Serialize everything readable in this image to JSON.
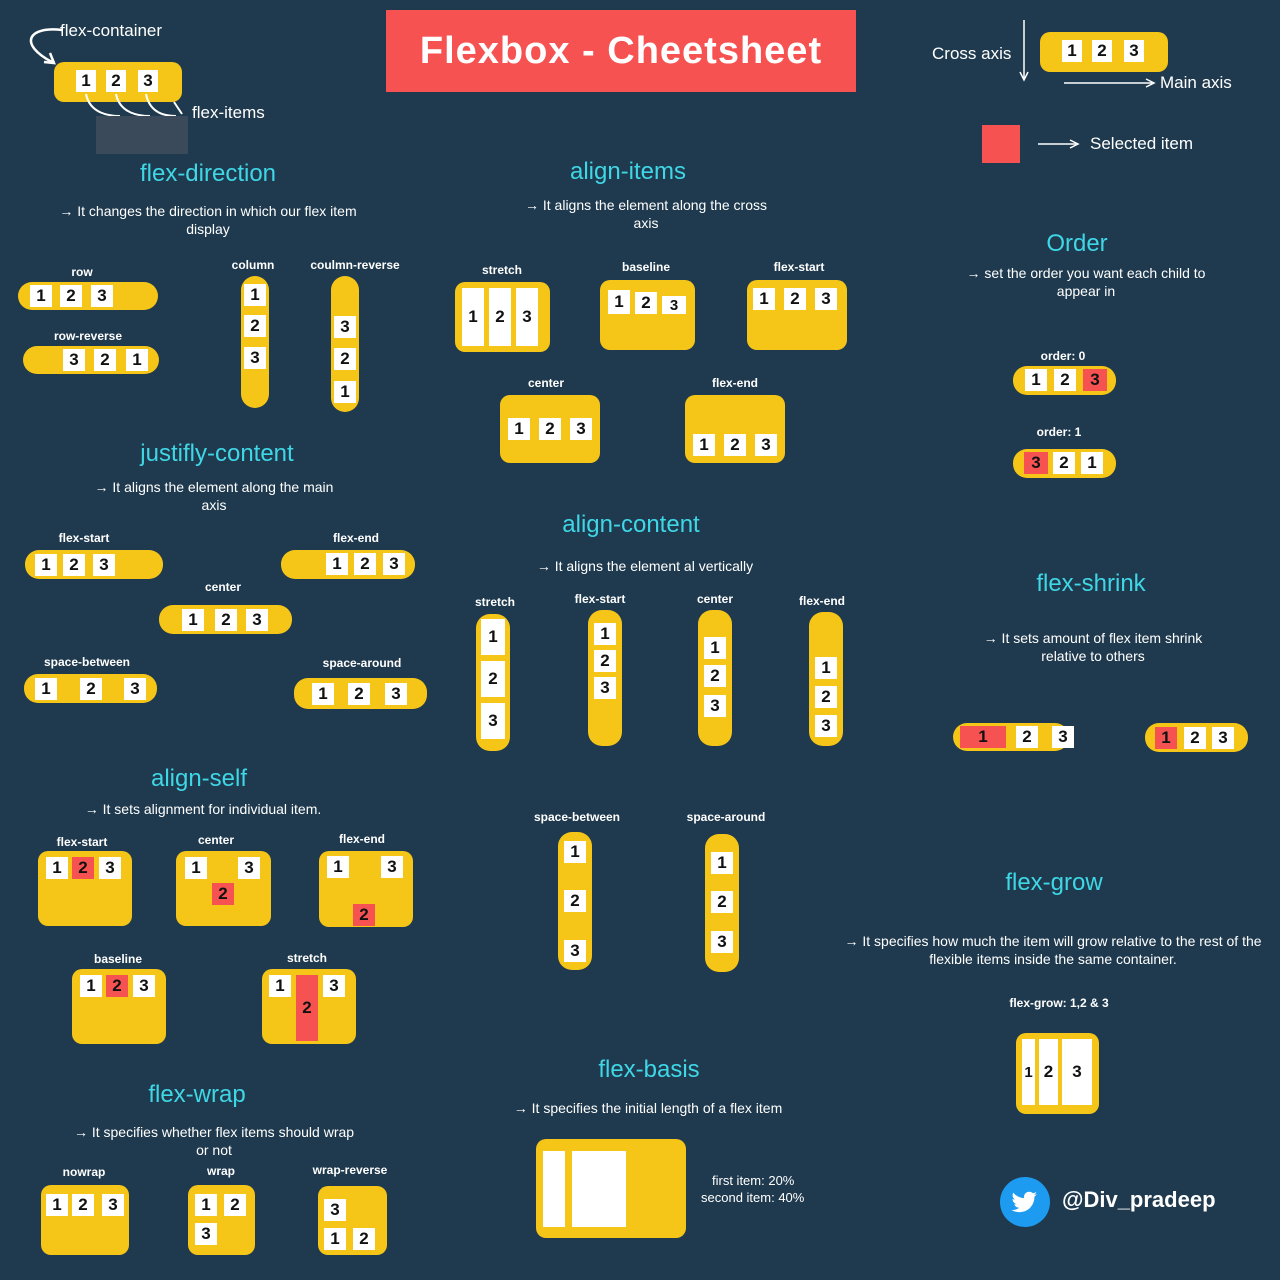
{
  "title": "Flexbox - Cheetsheet",
  "legend": {
    "flex_container": "flex-container",
    "flex_items": "flex-items",
    "cross_axis": "Cross axis",
    "main_axis": "Main axis",
    "selected_item": "Selected item"
  },
  "flex_direction": {
    "heading": "flex-direction",
    "desc": "→ It changes the direction in which our flex item display",
    "row": "row",
    "row_reverse": "row-reverse",
    "column": "column",
    "column_reverse": "coulmn-reverse"
  },
  "align_items": {
    "heading": "align-items",
    "desc": "→ It aligns the element along the cross  axis",
    "stretch": "stretch",
    "baseline": "baseline",
    "flex_start": "flex-start",
    "center": "center",
    "flex_end": "flex-end"
  },
  "order": {
    "heading": "Order",
    "desc": "→ set the order you want each child to appear in",
    "order0": "order: 0",
    "order1": "order: 1"
  },
  "justify_content": {
    "heading": "justifly-content",
    "desc": "→ It aligns the element along the main axis",
    "flex_start": "flex-start",
    "flex_end": "flex-end",
    "center": "center",
    "space_between": "space-between",
    "space_around": "space-around"
  },
  "align_content": {
    "heading": "align-content",
    "desc": "→ It aligns the element al vertically",
    "stretch": "stretch",
    "flex_start": "flex-start",
    "center": "center",
    "flex_end": "flex-end",
    "space_between": "space-between",
    "space_around": "space-around"
  },
  "flex_shrink": {
    "heading": "flex-shrink",
    "desc": "→ It sets amount of flex item shrink relative to others"
  },
  "align_self": {
    "heading": "align-self",
    "desc": "→ It sets alignment for individual item.",
    "flex_start": "flex-start",
    "center": "center",
    "flex_end": "flex-end",
    "baseline": "baseline",
    "stretch": "stretch"
  },
  "flex_grow": {
    "heading": "flex-grow",
    "desc": "→ It specifies how much the item will grow relative to the rest of the flexible items inside the same container.",
    "label": "flex-grow: 1,2 & 3"
  },
  "flex_wrap": {
    "heading": "flex-wrap",
    "desc": "→ It specifies whether flex items should wrap or not",
    "nowrap": "nowrap",
    "wrap": "wrap",
    "wrap_reverse": "wrap-reverse"
  },
  "flex_basis": {
    "heading": "flex-basis",
    "desc": "→ It specifies the initial length of a flex item",
    "first": "first item: 20%",
    "second": "second item: 40%"
  },
  "handle": "@Div_pradeep",
  "items": {
    "i1": "1",
    "i2": "2",
    "i3": "3"
  },
  "colors": {
    "background": "#1f3a4e",
    "container": "#f5c518",
    "selected": "#f65252",
    "heading": "#3fd7e6",
    "item": "#ffffff"
  },
  "icons": [
    "curved-arrow-icon",
    "twitter-bird-icon",
    "arrow-right-icon",
    "arrow-down-icon"
  ]
}
